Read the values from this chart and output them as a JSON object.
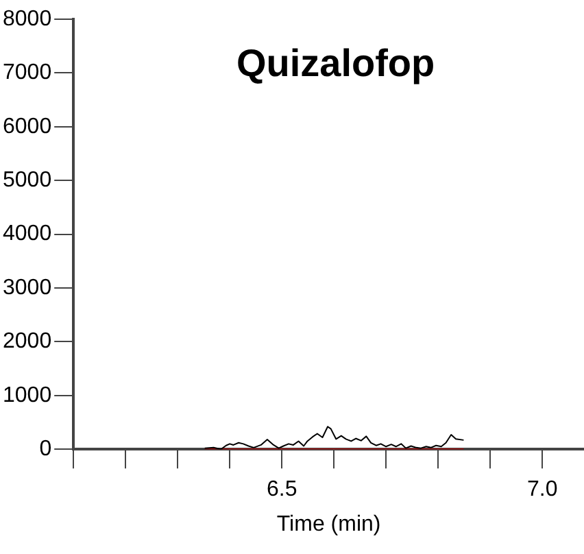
{
  "chart_data": {
    "type": "line",
    "title": "Quizalofop",
    "xlabel": "Time (min)",
    "xlim": [
      6.1,
      7.08
    ],
    "xticks": [
      {
        "value": 6.1,
        "label": null
      },
      {
        "value": 6.2,
        "label": null
      },
      {
        "value": 6.3,
        "label": null
      },
      {
        "value": 6.4,
        "label": null
      },
      6.5,
      {
        "value": 6.6,
        "label": null
      },
      {
        "value": 6.7,
        "label": null
      },
      {
        "value": 6.8,
        "label": null
      },
      {
        "value": 6.9,
        "label": null
      },
      {
        "value": 7.0,
        "label": "7.0"
      }
    ],
    "ylim": [
      0,
      8000
    ],
    "yticks": [
      0,
      1000,
      2000,
      3000,
      4000,
      5000,
      6000,
      7000,
      8000
    ],
    "grid": false,
    "legend": false,
    "marker": "none",
    "line_style": "solid",
    "series": [
      {
        "color": "#000000",
        "x": [
          6.352,
          6.369,
          6.383,
          6.393,
          6.4,
          6.407,
          6.417,
          6.426,
          6.436,
          6.446,
          6.46,
          6.472,
          6.484,
          6.494,
          6.503,
          6.513,
          6.522,
          6.532,
          6.542,
          6.549,
          6.559,
          6.568,
          6.578,
          6.588,
          6.594,
          6.604,
          6.614,
          6.623,
          6.633,
          6.642,
          6.652,
          6.662,
          6.671,
          6.681,
          6.69,
          6.7,
          6.71,
          6.719,
          6.729,
          6.738,
          6.748,
          6.758,
          6.767,
          6.777,
          6.786,
          6.796,
          6.806,
          6.815,
          6.825,
          6.834,
          6.849
        ],
        "values": [
          20,
          30,
          0,
          70,
          100,
          80,
          120,
          100,
          60,
          30,
          80,
          180,
          80,
          20,
          60,
          100,
          80,
          150,
          60,
          150,
          230,
          290,
          220,
          420,
          380,
          190,
          250,
          190,
          150,
          200,
          160,
          240,
          120,
          70,
          100,
          50,
          90,
          50,
          100,
          20,
          60,
          30,
          20,
          50,
          30,
          70,
          50,
          120,
          270,
          190,
          170
        ]
      },
      {
        "color": "#cc0000",
        "x": [
          6.352,
          6.849
        ],
        "values": [
          0,
          0
        ]
      }
    ]
  }
}
